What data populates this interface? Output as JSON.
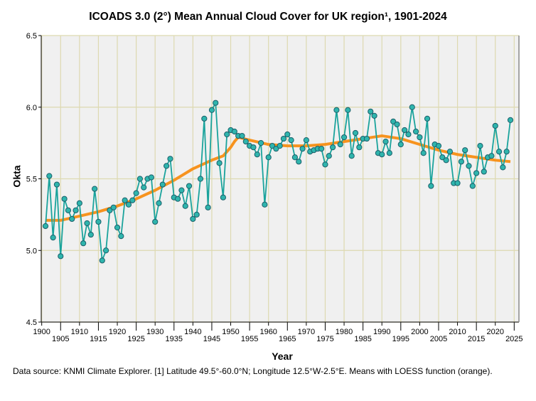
{
  "chart_data": {
    "type": "line",
    "title": "ICOADS 3.0 (2°) Mean Annual Cloud Cover for UK region¹, 1901-2024",
    "xlabel": "Year",
    "ylabel": "Okta",
    "ylim": [
      4.5,
      6.5
    ],
    "xlim": [
      1899.5,
      2026.5
    ],
    "yticks": [
      "4.5",
      "5.0",
      "5.5",
      "6.0",
      "6.5"
    ],
    "yticks_values": [
      4.5,
      5.0,
      5.5,
      6.0,
      6.5
    ],
    "xticks": [
      "1900",
      "1905",
      "1910",
      "1915",
      "1920",
      "1925",
      "1930",
      "1935",
      "1940",
      "1945",
      "1950",
      "1955",
      "1960",
      "1965",
      "1970",
      "1975",
      "1980",
      "1985",
      "1990",
      "1995",
      "2000",
      "2005",
      "2010",
      "2015",
      "2020",
      "2025"
    ],
    "grid": true,
    "series": [
      {
        "name": "Annual mean",
        "color": "#1aa39c",
        "x_start": 1901,
        "values": [
          5.17,
          5.52,
          5.09,
          5.46,
          4.96,
          5.36,
          5.28,
          5.22,
          5.28,
          5.33,
          5.05,
          5.19,
          5.11,
          5.43,
          5.2,
          4.93,
          5.0,
          5.28,
          5.3,
          5.16,
          5.1,
          5.35,
          5.32,
          5.35,
          5.4,
          5.5,
          5.44,
          5.5,
          5.51,
          5.2,
          5.33,
          5.46,
          5.59,
          5.64,
          5.37,
          5.36,
          5.42,
          5.31,
          5.45,
          5.22,
          5.25,
          5.5,
          5.92,
          5.3,
          5.98,
          6.03,
          5.61,
          5.37,
          5.81,
          5.84,
          5.83,
          5.8,
          5.8,
          5.76,
          5.73,
          5.72,
          5.67,
          5.75,
          5.32,
          5.65,
          5.73,
          5.71,
          5.73,
          5.78,
          5.81,
          5.77,
          5.65,
          5.62,
          5.71,
          5.77,
          5.69,
          5.7,
          5.71,
          5.71,
          5.6,
          5.66,
          5.72,
          5.98,
          5.74,
          5.79,
          5.98,
          5.66,
          5.82,
          5.72,
          5.78,
          5.78,
          5.97,
          5.94,
          5.68,
          5.67,
          5.76,
          5.68,
          5.9,
          5.88,
          5.74,
          5.84,
          5.81,
          6.0,
          5.83,
          5.79,
          5.68,
          5.92,
          5.45,
          5.74,
          5.73,
          5.65,
          5.63,
          5.69,
          5.47,
          5.47,
          5.62,
          5.7,
          5.59,
          5.45,
          5.54,
          5.73,
          5.55,
          5.65,
          5.66,
          5.87,
          5.69,
          5.58,
          5.69,
          5.91
        ]
      },
      {
        "name": "LOESS",
        "color": "#f7931e",
        "points": [
          [
            1901,
            5.21
          ],
          [
            1905,
            5.21
          ],
          [
            1910,
            5.24
          ],
          [
            1915,
            5.27
          ],
          [
            1920,
            5.31
          ],
          [
            1925,
            5.36
          ],
          [
            1930,
            5.42
          ],
          [
            1935,
            5.49
          ],
          [
            1940,
            5.57
          ],
          [
            1945,
            5.63
          ],
          [
            1948,
            5.66
          ],
          [
            1950,
            5.72
          ],
          [
            1951,
            5.76
          ],
          [
            1952,
            5.79
          ],
          [
            1955,
            5.77
          ],
          [
            1960,
            5.74
          ],
          [
            1965,
            5.73
          ],
          [
            1970,
            5.73
          ],
          [
            1975,
            5.74
          ],
          [
            1980,
            5.76
          ],
          [
            1985,
            5.78
          ],
          [
            1990,
            5.8
          ],
          [
            1995,
            5.78
          ],
          [
            2000,
            5.74
          ],
          [
            2005,
            5.7
          ],
          [
            2010,
            5.67
          ],
          [
            2015,
            5.65
          ],
          [
            2020,
            5.63
          ],
          [
            2024,
            5.62
          ]
        ]
      }
    ]
  },
  "footnote": "Data source: KNMI Climate Explorer. [1] Latitude 49.5°-60.0°N; Longitude 12.5°W-2.5°E. Means with LOESS function (orange)."
}
